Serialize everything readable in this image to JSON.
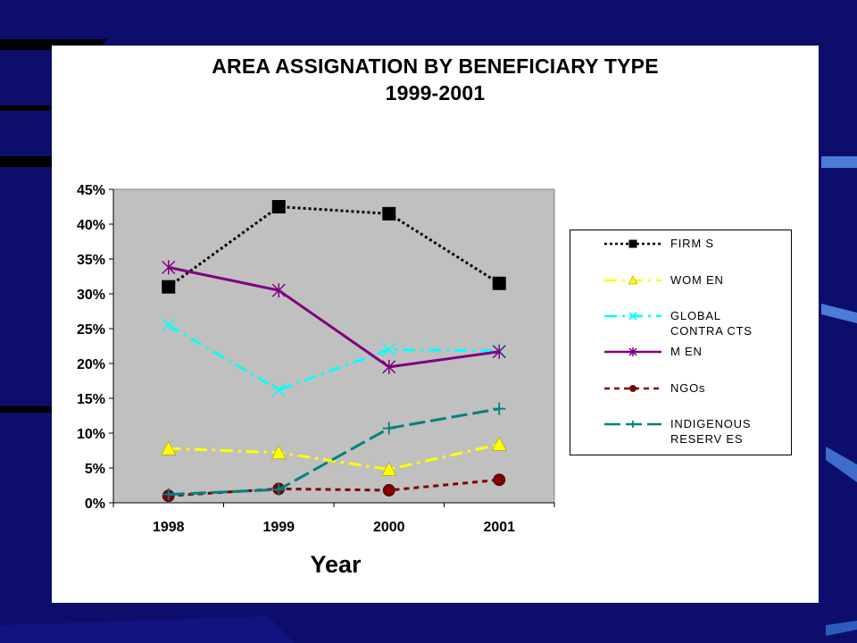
{
  "chart_data": {
    "type": "line",
    "title": "AREA ASSIGNATION BY BENEFICIARY TYPE",
    "subtitle": "1999-2001",
    "xlabel": "Year",
    "ylabel": "",
    "categories": [
      "1998",
      "1999",
      "2000",
      "2001"
    ],
    "ylim": [
      0,
      45
    ],
    "y_ticks": [
      "0%",
      "5%",
      "10%",
      "15%",
      "20%",
      "25%",
      "30%",
      "35%",
      "40%",
      "45%"
    ],
    "y_tick_values": [
      0,
      5,
      10,
      15,
      20,
      25,
      30,
      35,
      40,
      45
    ],
    "grid": false,
    "plot_background": "#c0c0c0",
    "legend_position": "right",
    "series": [
      {
        "name": "FIRMS",
        "legend_label": "FIRM S",
        "values": [
          31,
          42.5,
          41.5,
          31.5
        ],
        "color": "#000000",
        "marker": "square",
        "dash": "dotted"
      },
      {
        "name": "WOMEN",
        "legend_label": "WOM EN",
        "values": [
          7.8,
          7.2,
          4.8,
          8.4
        ],
        "color": "#ffff00",
        "marker": "triangle",
        "dash": "dash-dot"
      },
      {
        "name": "GLOBAL CONTRACTS",
        "legend_label": "GLOBAL\nCONTRA CTS",
        "values": [
          25.5,
          16.2,
          22,
          21.8
        ],
        "color": "#00ffff",
        "marker": "x",
        "dash": "dash-dot"
      },
      {
        "name": "MEN",
        "legend_label": "M EN",
        "values": [
          33.8,
          30.5,
          19.5,
          21.7
        ],
        "color": "#800080",
        "marker": "asterisk",
        "dash": "solid"
      },
      {
        "name": "NGOs",
        "legend_label": "NGOs",
        "values": [
          1,
          2,
          1.8,
          3.3
        ],
        "color": "#800000",
        "marker": "circle",
        "dash": "dashed"
      },
      {
        "name": "INDIGENOUS RESERVES",
        "legend_label": "INDIGENOUS\nRESERV ES",
        "values": [
          1.2,
          1.9,
          10.7,
          13.5
        ],
        "color": "#008080",
        "marker": "plus",
        "dash": "long-dash"
      }
    ]
  }
}
